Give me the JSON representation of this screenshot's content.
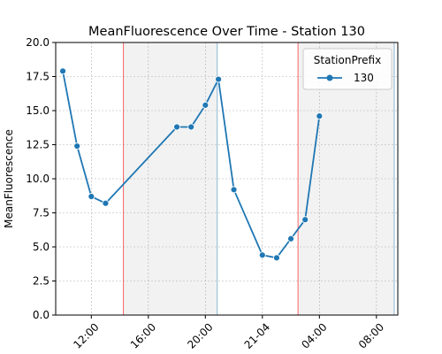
{
  "chart_data": {
    "type": "line",
    "title": "MeanFluorescence Over Time - Station 130",
    "xlabel": "",
    "ylabel": "MeanFluorescence",
    "ylim": [
      0,
      20
    ],
    "yticks": [
      "0.0",
      "2.5",
      "5.0",
      "7.5",
      "10.0",
      "12.5",
      "15.0",
      "17.5",
      "20.0"
    ],
    "xlim": [
      "20 09:30",
      "21 09:30"
    ],
    "xticks": [
      {
        "value": "20 12:00",
        "label": "12:00"
      },
      {
        "value": "20 16:00",
        "label": "16:00"
      },
      {
        "value": "20 20:00",
        "label": "20:00"
      },
      {
        "value": "21 00:00",
        "label": "21-04"
      },
      {
        "value": "21 04:00",
        "label": "04:00"
      },
      {
        "value": "21 08:00",
        "label": "08:00"
      }
    ],
    "grid": true,
    "legend": {
      "title": "StationPrefix",
      "position": "top-right"
    },
    "series": [
      {
        "name": "130",
        "color": "#1f77b4",
        "marker": "circle",
        "x": [
          "20 10:00",
          "20 11:00",
          "20 12:00",
          "20 13:00",
          "20 18:00",
          "20 19:00",
          "20 20:00",
          "20 20:55",
          "20 22:00",
          "21 00:00",
          "21 01:00",
          "21 02:00",
          "21 03:00",
          "21 04:00"
        ],
        "y": [
          17.9,
          12.4,
          8.7,
          8.2,
          13.8,
          13.8,
          15.4,
          17.3,
          9.2,
          4.4,
          4.2,
          5.6,
          7.0,
          14.6
        ]
      }
    ],
    "shaded_regions": [
      {
        "start": "20 14:15",
        "end": "20 20:50",
        "color": "#d3d3d3"
      },
      {
        "start": "21 02:30",
        "end": "21 09:15",
        "color": "#d3d3d3"
      }
    ],
    "vertical_lines": [
      {
        "x": "20 14:15",
        "color": "#ff0000"
      },
      {
        "x": "20 20:50",
        "color": "#1f77b4"
      },
      {
        "x": "21 02:30",
        "color": "#ff0000"
      },
      {
        "x": "21 09:15",
        "color": "#1f77b4"
      }
    ]
  }
}
